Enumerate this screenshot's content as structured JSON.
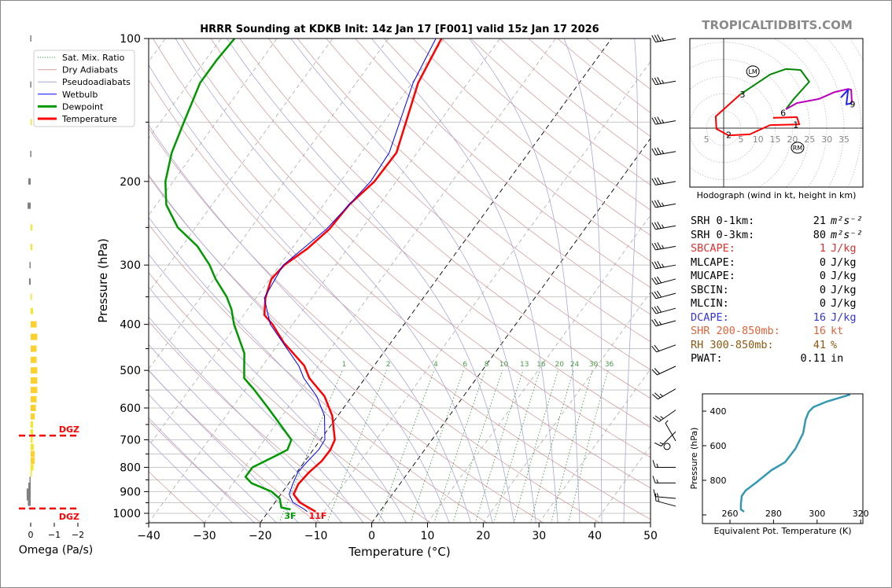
{
  "watermark": "TROPICALTIDBITS.COM",
  "chart_data": [
    {
      "type": "line",
      "subtype": "skew-t log-p",
      "title": "HRRR Sounding at KDKB Init: 14z Jan 17 [F001] valid 15z Jan 17 2026",
      "xlabel": "Temperature (°C)",
      "ylabel": "Pressure (hPa)",
      "xlim": [
        -40,
        50
      ],
      "ylim": [
        1050,
        100
      ],
      "yscale": "log",
      "x_ticks": [
        "−40",
        "−30",
        "−20",
        "−10",
        "0",
        "10",
        "20",
        "30",
        "40",
        "50"
      ],
      "y_ticks": [
        "100",
        "200",
        "300",
        "400",
        "500",
        "600",
        "700",
        "800",
        "900",
        "1000"
      ],
      "grid": true,
      "legend_position": "top-left",
      "legend": [
        {
          "label": "Sat. Mix. Ratio",
          "color": "#2e8b2e",
          "style": "dotted"
        },
        {
          "label": "Dry Adiabats",
          "color": "#d4a0a0",
          "style": "solid"
        },
        {
          "label": "Pseudoadiabats",
          "color": "#a8a8d8",
          "style": "solid"
        },
        {
          "label": "Wetbulb",
          "color": "#0000ff",
          "style": "solid"
        },
        {
          "label": "Dewpoint",
          "color": "#009900",
          "style": "solid"
        },
        {
          "label": "Temperature",
          "color": "#ff0000",
          "style": "solid"
        }
      ],
      "highlight_isotherms": [
        0,
        -20
      ],
      "mixing_ratio_labels": [
        "1",
        "2",
        "4",
        "6",
        "8",
        "10",
        "13",
        "16",
        "20",
        "24",
        "30",
        "36"
      ],
      "surface_labels": {
        "dewpoint": "3F",
        "temperature": "11F"
      },
      "series": [
        {
          "name": "Temperature",
          "color": "#ff0000",
          "points": [
            [
              100,
              -50.5
            ],
            [
              124,
              -48.9
            ],
            [
              174,
              -43.7
            ],
            [
              200,
              -43.9
            ],
            [
              224,
              -45.4
            ],
            [
              252,
              -45.8
            ],
            [
              277,
              -47.2
            ],
            [
              300,
              -49.2
            ],
            [
              321,
              -49.7
            ],
            [
              352,
              -48.3
            ],
            [
              382,
              -46.3
            ],
            [
              400,
              -43.6
            ],
            [
              437,
              -39.2
            ],
            [
              489,
              -32.5
            ],
            [
              519,
              -30.0
            ],
            [
              567,
              -24.9
            ],
            [
              623,
              -21.0
            ],
            [
              700,
              -17.4
            ],
            [
              735,
              -16.9
            ],
            [
              776,
              -17.0
            ],
            [
              820,
              -17.8
            ],
            [
              868,
              -18.2
            ],
            [
              912,
              -17.7
            ],
            [
              948,
              -15.6
            ],
            [
              981,
              -12.5
            ],
            [
              992,
              -11.5
            ]
          ]
        },
        {
          "name": "Wetbulb",
          "color": "#0000ff",
          "points": [
            [
              100,
              -51.5
            ],
            [
              124,
              -49.8
            ],
            [
              174,
              -45.0
            ],
            [
              200,
              -44.6
            ],
            [
              252,
              -46.3
            ],
            [
              300,
              -49.4
            ],
            [
              352,
              -48.5
            ],
            [
              400,
              -44.0
            ],
            [
              489,
              -33.5
            ],
            [
              519,
              -31.0
            ],
            [
              567,
              -26.3
            ],
            [
              623,
              -22.4
            ],
            [
              700,
              -19.2
            ],
            [
              735,
              -19.0
            ],
            [
              776,
              -19.5
            ],
            [
              820,
              -19.8
            ],
            [
              868,
              -19.2
            ],
            [
              912,
              -18.5
            ],
            [
              948,
              -16.8
            ],
            [
              981,
              -13.8
            ],
            [
              992,
              -13.0
            ]
          ]
        },
        {
          "name": "Dewpoint",
          "color": "#009900",
          "points": [
            [
              100,
              -87.6
            ],
            [
              111,
              -88.0
            ],
            [
              124,
              -88.0
            ],
            [
              150,
              -85.8
            ],
            [
              174,
              -84.0
            ],
            [
              200,
              -81.4
            ],
            [
              224,
              -78.2
            ],
            [
              250,
              -73.2
            ],
            [
              274,
              -67.2
            ],
            [
              300,
              -62.6
            ],
            [
              321,
              -59.7
            ],
            [
              350,
              -55.4
            ],
            [
              372,
              -52.9
            ],
            [
              400,
              -50.5
            ],
            [
              460,
              -44.9
            ],
            [
              519,
              -41.7
            ],
            [
              549,
              -38.4
            ],
            [
              600,
              -33.5
            ],
            [
              700,
              -25.2
            ],
            [
              735,
              -24.6
            ],
            [
              750,
              -25.5
            ],
            [
              800,
              -28.6
            ],
            [
              838,
              -28.6
            ],
            [
              864,
              -26.7
            ],
            [
              900,
              -22.0
            ],
            [
              932,
              -19.6
            ],
            [
              972,
              -18.2
            ],
            [
              981,
              -16.3
            ]
          ]
        }
      ],
      "wind_barbs_units": "kt",
      "wind_barbs": [
        [
          100,
          260,
          35
        ],
        [
          123,
          260,
          35
        ],
        [
          149,
          260,
          35
        ],
        [
          173,
          260,
          35
        ],
        [
          200,
          260,
          35
        ],
        [
          223,
          260,
          35
        ],
        [
          248,
          260,
          35
        ],
        [
          274,
          260,
          35
        ],
        [
          300,
          260,
          35
        ],
        [
          321,
          255,
          30
        ],
        [
          344,
          255,
          30
        ],
        [
          370,
          255,
          30
        ],
        [
          393,
          255,
          25
        ],
        [
          442,
          250,
          20
        ],
        [
          490,
          245,
          20
        ],
        [
          547,
          240,
          25
        ],
        [
          606,
          235,
          25
        ],
        [
          673,
          225,
          15
        ],
        [
          704,
          330,
          5
        ],
        [
          723,
          0,
          0
        ],
        [
          800,
          270,
          15
        ],
        [
          863,
          270,
          15
        ],
        [
          930,
          275,
          15
        ],
        [
          966,
          285,
          15
        ]
      ]
    },
    {
      "type": "bar",
      "subtype": "omega profile",
      "xlabel": "Omega (Pa/s)",
      "x_ticks": [
        "0",
        "−1",
        "−2"
      ],
      "xlim": [
        0.5,
        -2
      ],
      "colors": {
        "rising": "#f7d21e",
        "sinking": "#808080"
      },
      "dgz_label": "DGZ",
      "dgz_bounds_hPa": [
        686,
        977
      ],
      "values": [
        [
          100,
          0.02
        ],
        [
          125,
          0.02
        ],
        [
          150,
          -0.05
        ],
        [
          175,
          0.02
        ],
        [
          200,
          0.1
        ],
        [
          225,
          0.13
        ],
        [
          250,
          -0.07
        ],
        [
          275,
          -0.07
        ],
        [
          300,
          0.05
        ],
        [
          325,
          0.07
        ],
        [
          350,
          -0.02
        ],
        [
          375,
          -0.1
        ],
        [
          400,
          -0.25
        ],
        [
          425,
          -0.28
        ],
        [
          450,
          -0.25
        ],
        [
          475,
          -0.25
        ],
        [
          500,
          -0.28
        ],
        [
          525,
          -0.28
        ],
        [
          550,
          -0.28
        ],
        [
          575,
          -0.25
        ],
        [
          600,
          -0.22
        ],
        [
          625,
          -0.17
        ],
        [
          650,
          -0.1
        ],
        [
          675,
          -0.1
        ],
        [
          700,
          -0.08
        ],
        [
          725,
          -0.13
        ],
        [
          750,
          -0.17
        ],
        [
          775,
          -0.17
        ],
        [
          800,
          -0.12
        ],
        [
          825,
          -0.05
        ],
        [
          850,
          0.05
        ],
        [
          875,
          0.1
        ],
        [
          900,
          0.17
        ],
        [
          925,
          0.17
        ],
        [
          950,
          0.12
        ]
      ]
    },
    {
      "type": "line",
      "subtype": "hodograph",
      "xlabel": "Hodograph (wind in kt, height in km)",
      "ring_labels": [
        "5",
        "5",
        "10",
        "15",
        "20",
        "25",
        "30",
        "35"
      ],
      "segments": [
        {
          "layer": "0-3 km",
          "color": "#ff0000",
          "points": [
            [
              14.4,
              3.0
            ],
            [
              21.3,
              3.2
            ],
            [
              22.0,
              1.1
            ],
            [
              13.5,
              0.9
            ],
            [
              7.6,
              -1.8
            ],
            [
              1.4,
              -2.1
            ],
            [
              -2.1,
              -0.2
            ],
            [
              -2.3,
              3.4
            ],
            [
              4.8,
              9.8
            ]
          ]
        },
        {
          "layer": "3-6 km",
          "color": "#008800",
          "points": [
            [
              4.8,
              9.8
            ],
            [
              13.5,
              15.6
            ],
            [
              18.1,
              17.2
            ],
            [
              22.4,
              16.9
            ],
            [
              24.9,
              13.5
            ],
            [
              20.4,
              8.5
            ],
            [
              18.1,
              5.5
            ]
          ]
        },
        {
          "layer": "6-9 km",
          "color": "#bb00bb",
          "points": [
            [
              18.1,
              5.5
            ],
            [
              21.3,
              7.3
            ],
            [
              27.7,
              8.5
            ],
            [
              32.3,
              10.5
            ],
            [
              36.2,
              11.4
            ],
            [
              37.1,
              11.2
            ],
            [
              37.3,
              7.3
            ]
          ]
        },
        {
          "layer": "9+ km",
          "color": "#2222ff",
          "points": [
            [
              37.3,
              7.3
            ],
            [
              35.7,
              6.9
            ],
            [
              36.2,
              11.2
            ],
            [
              34.1,
              8.9
            ]
          ]
        }
      ],
      "height_labels": [
        {
          "text": "1",
          "uv": [
            21.0,
            1.0
          ]
        },
        {
          "text": "2",
          "uv": [
            1.5,
            -2.0
          ]
        },
        {
          "text": "3",
          "uv": [
            5.5,
            9.8
          ]
        },
        {
          "text": "6",
          "uv": [
            17.3,
            4.5
          ]
        },
        {
          "text": "9",
          "uv": [
            37.5,
            7.0
          ]
        }
      ],
      "storm_motion": [
        {
          "text": "LM",
          "uv": [
            8.5,
            16.5
          ]
        },
        {
          "text": "RM",
          "uv": [
            21.5,
            -5.7
          ]
        }
      ]
    },
    {
      "type": "line",
      "subtype": "theta-e profile",
      "xlabel": "Equivalent Pot. Temperature (K)",
      "ylabel": "Pressure (hPa)",
      "xlim": [
        247,
        321
      ],
      "ylim": [
        1050,
        300
      ],
      "x_ticks": [
        "260",
        "280",
        "300",
        "320"
      ],
      "y_ticks": [
        "400",
        "600",
        "800"
      ],
      "color": "#3399b3",
      "points": [
        [
          304,
          315.2
        ],
        [
          345,
          304.4
        ],
        [
          377,
          298.3
        ],
        [
          405,
          296.1
        ],
        [
          450,
          294.7
        ],
        [
          527,
          293.6
        ],
        [
          618,
          290.0
        ],
        [
          695,
          285.3
        ],
        [
          741,
          279.1
        ],
        [
          814,
          271.9
        ],
        [
          859,
          267.2
        ],
        [
          891,
          265.4
        ],
        [
          936,
          265.0
        ],
        [
          968,
          265.0
        ],
        [
          982,
          266.5
        ]
      ]
    }
  ],
  "stats": [
    {
      "label": "SRH 0-1km:",
      "value": "21",
      "unit": "m²s⁻²",
      "color": "#000000"
    },
    {
      "label": "SRH 0-3km:",
      "value": "80",
      "unit": "m²s⁻²",
      "color": "#000000"
    },
    {
      "label": "SBCAPE:",
      "value": "1",
      "unit": "J/kg",
      "color": "#e03030"
    },
    {
      "label": "MLCAPE:",
      "value": "0",
      "unit": "J/kg",
      "color": "#000000"
    },
    {
      "label": "MUCAPE:",
      "value": "0",
      "unit": "J/kg",
      "color": "#000000"
    },
    {
      "label": "SBCIN:",
      "value": "0",
      "unit": "J/kg",
      "color": "#000000"
    },
    {
      "label": "MLCIN:",
      "value": "0",
      "unit": "J/kg",
      "color": "#000000"
    },
    {
      "label": "DCAPE:",
      "value": "16",
      "unit": "J/kg",
      "color": "#3535e0"
    },
    {
      "label": "SHR 200-850mb:",
      "value": "16",
      "unit": "kt",
      "color": "#e0643a"
    },
    {
      "label": "RH 300-850mb:",
      "value": "41",
      "unit": "%",
      "color": "#8c5a12"
    },
    {
      "label": "PWAT:",
      "value": "0.11",
      "unit": "in",
      "color": "#000000"
    }
  ]
}
